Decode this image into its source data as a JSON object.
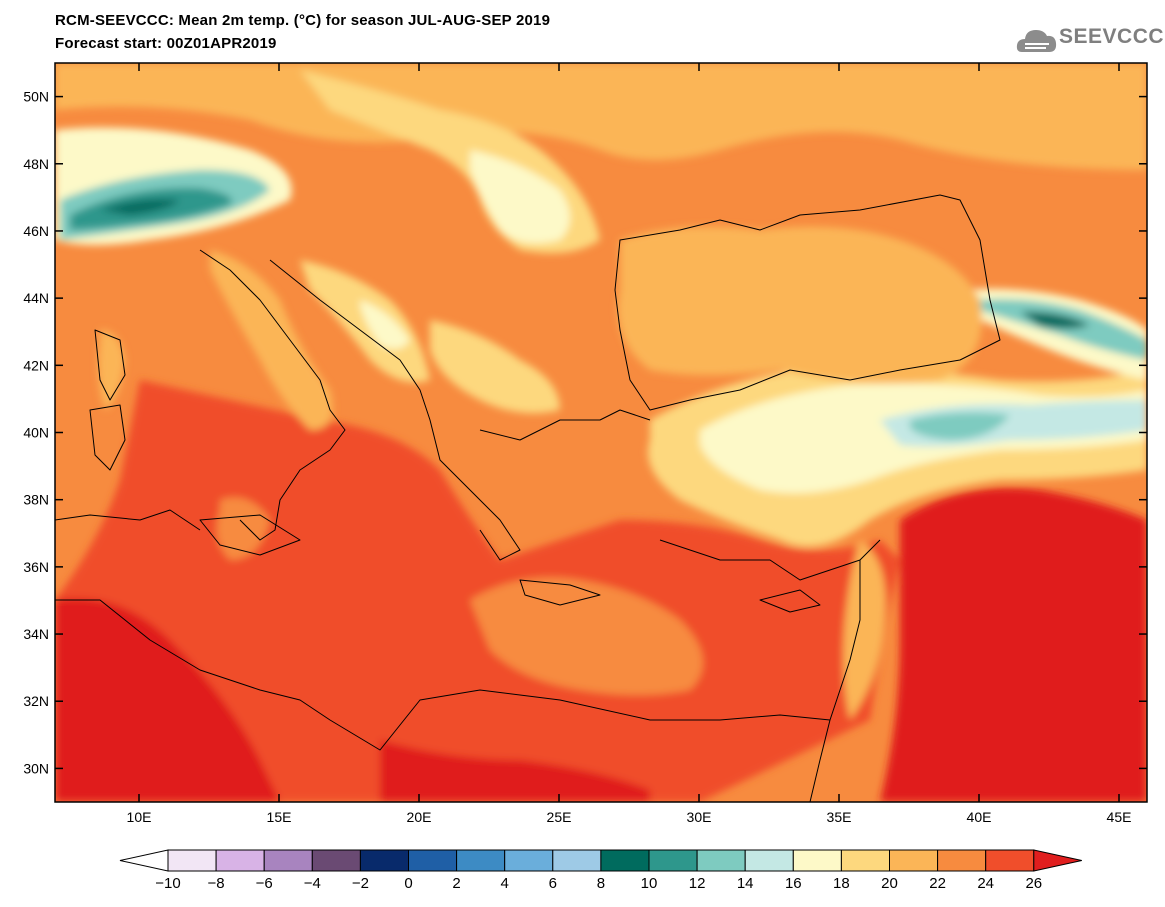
{
  "header": {
    "title_line1": "RCM-SEEVCCC: Mean 2m temp. (°C) for season JUL-AUG-SEP 2019",
    "title_line2": "Forecast start: 00Z01APR2019"
  },
  "logo": {
    "text": "SEEVCCC",
    "icon": "cloud-icon",
    "color": "#7f7f7f"
  },
  "map": {
    "lon_range": [
      7,
      46
    ],
    "lat_range": [
      29,
      51
    ],
    "lon_ticks": [
      {
        "value": 10,
        "label": "10E"
      },
      {
        "value": 15,
        "label": "15E"
      },
      {
        "value": 20,
        "label": "20E"
      },
      {
        "value": 25,
        "label": "25E"
      },
      {
        "value": 30,
        "label": "30E"
      },
      {
        "value": 35,
        "label": "35E"
      },
      {
        "value": 40,
        "label": "40E"
      },
      {
        "value": 45,
        "label": "45E"
      }
    ],
    "lat_ticks": [
      {
        "value": 30,
        "label": "30N"
      },
      {
        "value": 32,
        "label": "32N"
      },
      {
        "value": 34,
        "label": "34N"
      },
      {
        "value": 36,
        "label": "36N"
      },
      {
        "value": 38,
        "label": "38N"
      },
      {
        "value": 40,
        "label": "40N"
      },
      {
        "value": 42,
        "label": "42N"
      },
      {
        "value": 44,
        "label": "44N"
      },
      {
        "value": 46,
        "label": "46N"
      },
      {
        "value": 48,
        "label": "48N"
      },
      {
        "value": 50,
        "label": "50N"
      }
    ]
  },
  "colorbar": {
    "under_color": "#ffffff",
    "over_color": "#e01e1e",
    "bins": [
      {
        "from": -10,
        "to": -8,
        "color": "#f2e6f5"
      },
      {
        "from": -8,
        "to": -6,
        "color": "#d8b3e6"
      },
      {
        "from": -6,
        "to": -4,
        "color": "#a884bf"
      },
      {
        "from": -4,
        "to": -2,
        "color": "#6a4a73"
      },
      {
        "from": -2,
        "to": 0,
        "color": "#082a6b"
      },
      {
        "from": 0,
        "to": 2,
        "color": "#1f5fa6"
      },
      {
        "from": 2,
        "to": 4,
        "color": "#3d8bc4"
      },
      {
        "from": 4,
        "to": 6,
        "color": "#6aaedb"
      },
      {
        "from": 6,
        "to": 8,
        "color": "#9ecae6"
      },
      {
        "from": 8,
        "to": 10,
        "color": "#006b5e"
      },
      {
        "from": 10,
        "to": 12,
        "color": "#2e978c"
      },
      {
        "from": 12,
        "to": 14,
        "color": "#7ecbc0"
      },
      {
        "from": 14,
        "to": 16,
        "color": "#c4e8e4"
      },
      {
        "from": 16,
        "to": 18,
        "color": "#fdf9c8"
      },
      {
        "from": 18,
        "to": 20,
        "color": "#fdd87e"
      },
      {
        "from": 20,
        "to": 22,
        "color": "#fbb557"
      },
      {
        "from": 22,
        "to": 24,
        "color": "#f78b3f"
      },
      {
        "from": 24,
        "to": 26,
        "color": "#f04e2b"
      }
    ],
    "labels": [
      "−10",
      "−8",
      "−6",
      "−4",
      "−2",
      "0",
      "2",
      "4",
      "6",
      "8",
      "10",
      "12",
      "14",
      "16",
      "18",
      "20",
      "22",
      "24",
      "26"
    ]
  }
}
